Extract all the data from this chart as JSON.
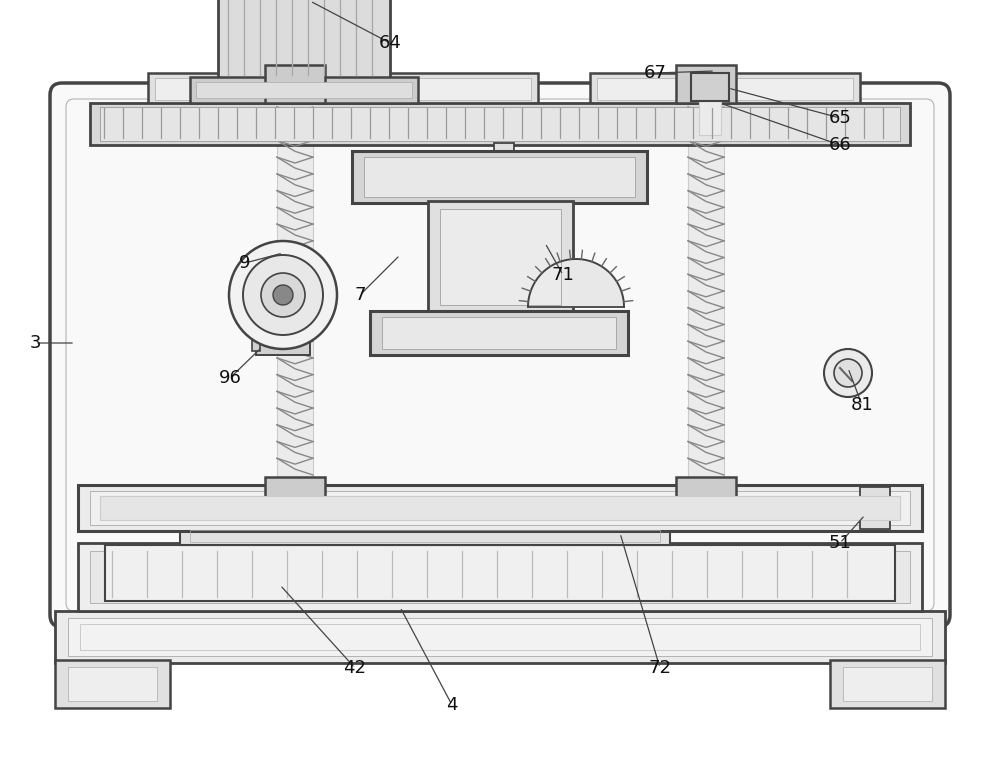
{
  "bg": "#ffffff",
  "lc": "#444444",
  "lc2": "#666666",
  "fc_light": "#f0f0f0",
  "fc_mid": "#e0e0e0",
  "fc_dark": "#cccccc",
  "fc_gray": "#d8d8d8"
}
